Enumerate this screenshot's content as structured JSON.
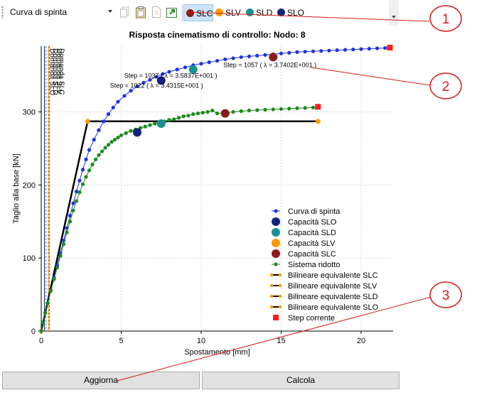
{
  "toolbar": {
    "view_select": "Curva di spinta",
    "icons": [
      "copy-icon",
      "clipboard-icon",
      "document-icon",
      "export-icon"
    ],
    "legend": [
      {
        "label": "SLC",
        "color": "#8b1a1a"
      },
      {
        "label": "SLV",
        "color": "#ff9900"
      },
      {
        "label": "SLD",
        "color": "#1a9090"
      },
      {
        "label": "SLO",
        "color": "#13237a"
      }
    ]
  },
  "chart_data": {
    "type": "line",
    "title": "Risposta cinematismo di controllo: Nodo: 8",
    "xlabel": "Spostamento [mm]",
    "ylabel": "Taglio alla base [kN]",
    "xlim": [
      0,
      22
    ],
    "ylim": [
      0,
      390
    ],
    "xticks": [
      "0",
      "5",
      "10",
      "15",
      "20"
    ],
    "yticks": [
      "0",
      "100",
      "200",
      "300"
    ],
    "vertical_lines": [
      {
        "label": "Domanda SLO",
        "x": 0.2,
        "color": "#13237a"
      },
      {
        "label": "Domanda SLD",
        "x": 0.3,
        "color": "#1a9090"
      },
      {
        "label": "Domanda SLV",
        "x": 0.45,
        "color": "#ff9900"
      },
      {
        "label": "Domanda SLC",
        "x": 0.5,
        "color": "#8b1a1a"
      }
    ],
    "annotations": [
      {
        "text": "Step = 1057 ( λ = 3.7402E+001 )",
        "x": 14.5,
        "y": 375
      },
      {
        "text": "Step = 1037 ( λ = 3.5837E+001 )",
        "x": 7.5,
        "y": 343
      },
      {
        "text": "Step = 1022 ( λ = 3.4315E+001 )",
        "x": 7.5,
        "y": 343
      }
    ],
    "series": [
      {
        "name": "Curva di spinta",
        "color": "#1f32e6",
        "marker": "dot",
        "x": [
          0,
          0.1,
          0.25,
          0.4,
          0.6,
          0.8,
          1.0,
          1.2,
          1.4,
          1.6,
          1.8,
          2.0,
          2.2,
          2.4,
          2.6,
          2.8,
          3.0,
          3.3,
          3.6,
          3.9,
          4.2,
          4.5,
          4.8,
          5.2,
          5.6,
          6.0,
          6.4,
          6.8,
          7.2,
          7.6,
          8.0,
          8.5,
          9.0,
          9.5,
          10.0,
          10.5,
          11.0,
          11.5,
          12.0,
          12.5,
          13.0,
          13.5,
          14.0,
          14.5,
          15.0,
          15.5,
          16.0,
          16.5,
          17.0,
          17.5,
          18.0,
          18.5,
          19.0,
          19.5,
          20.0,
          20.5,
          21.0,
          21.5,
          21.8
        ],
        "y": [
          0,
          12,
          25,
          38,
          56,
          73,
          90,
          107,
          124,
          141,
          158,
          175,
          191,
          206,
          221,
          235,
          248,
          262,
          275,
          287,
          297,
          306,
          314,
          322,
          329,
          335,
          340,
          344,
          348,
          352,
          355,
          358,
          361,
          364,
          366,
          368,
          370,
          372,
          373.5,
          375,
          376,
          377,
          378,
          379,
          380,
          381,
          382,
          382.5,
          383,
          383.5,
          384,
          384.5,
          385,
          385.5,
          386,
          386.5,
          387,
          387.5,
          388
        ]
      },
      {
        "name": "Sistema ridotto",
        "color": "#1a8a1a",
        "marker": "dot",
        "x": [
          0,
          0.1,
          0.25,
          0.4,
          0.6,
          0.8,
          1.0,
          1.2,
          1.4,
          1.6,
          1.8,
          2.0,
          2.2,
          2.4,
          2.6,
          2.8,
          3.0,
          3.2,
          3.4,
          3.6,
          3.8,
          4.0,
          4.2,
          4.4,
          4.6,
          4.8,
          5.0,
          5.3,
          5.6,
          5.9,
          6.2,
          6.5,
          6.8,
          7.1,
          7.4,
          7.7,
          8.0,
          8.3,
          8.6,
          8.9,
          9.2,
          9.5,
          9.8,
          10.1,
          10.4,
          10.7,
          11.0,
          11.5,
          12.0,
          12.5,
          13.0,
          13.5,
          14.0,
          14.5,
          15.0,
          15.5,
          16.0,
          16.5,
          17.0,
          17.3
        ],
        "y": [
          0,
          12,
          25,
          38,
          55,
          71,
          87,
          103,
          119,
          135,
          150,
          165,
          178,
          190,
          201,
          211,
          220,
          228,
          235,
          241,
          246,
          251,
          255,
          259,
          262,
          265,
          268,
          271,
          274,
          276,
          278,
          280,
          282,
          284,
          285,
          287,
          289,
          290,
          292,
          294,
          295,
          297,
          298,
          299,
          300,
          302,
          298,
          299,
          300,
          301,
          302,
          302.5,
          303,
          303.5,
          304,
          304.5,
          305,
          305.5,
          306,
          306.5
        ]
      }
    ],
    "bilinear": [
      {
        "name": "Bilineare equivalente SLC",
        "x": [
          0,
          2.9,
          17.3
        ],
        "y": [
          0,
          287,
          287
        ],
        "color": "#ff9900"
      },
      {
        "name": "Bilineare equivalente SLV",
        "x": [
          0,
          2.9,
          17.3
        ],
        "y": [
          0,
          287,
          287
        ],
        "color": "#ff9900"
      },
      {
        "name": "Bilineare equivalente SLD",
        "x": [
          0,
          2.9,
          17.3
        ],
        "y": [
          0,
          287,
          287
        ],
        "color": "#ff9900"
      },
      {
        "name": "Bilineare equivalente SLO",
        "x": [
          0,
          2.9,
          17.3
        ],
        "y": [
          0,
          287,
          287
        ],
        "color": "#ff9900"
      }
    ],
    "capacity_points": [
      {
        "name": "Capacità SLO",
        "color": "#13237a",
        "points": [
          {
            "x": 7.5,
            "y": 343
          },
          {
            "x": 6.0,
            "y": 272
          }
        ]
      },
      {
        "name": "Capacità SLD",
        "color": "#1a9090",
        "points": [
          {
            "x": 9.5,
            "y": 358
          },
          {
            "x": 7.5,
            "y": 284
          }
        ]
      },
      {
        "name": "Capacità SLV",
        "color": "#ff9900",
        "points": [
          {
            "x": 2.9,
            "y": 287
          },
          {
            "x": 17.3,
            "y": 287
          }
        ]
      },
      {
        "name": "Capacità SLC",
        "color": "#8b1a1a",
        "points": [
          {
            "x": 14.5,
            "y": 375
          },
          {
            "x": 11.5,
            "y": 298
          }
        ]
      }
    ],
    "step_corrente": {
      "name": "Step corrente",
      "color": "#ff1a1a",
      "points": [
        {
          "x": 21.8,
          "y": 388
        },
        {
          "x": 17.3,
          "y": 307
        }
      ]
    },
    "legend_entries": [
      {
        "label": "Curva di spinta",
        "kind": "line-dot",
        "color": "#1f32e6"
      },
      {
        "label": "Capacità SLO",
        "kind": "big-dot",
        "color": "#13237a"
      },
      {
        "label": "Capacità SLD",
        "kind": "big-dot",
        "color": "#1a9090"
      },
      {
        "label": "Capacità SLV",
        "kind": "big-dot",
        "color": "#ff9900"
      },
      {
        "label": "Capacità SLC",
        "kind": "big-dot",
        "color": "#8b1a1a"
      },
      {
        "label": "Sistema ridotto",
        "kind": "line-dot",
        "color": "#1a8a1a"
      },
      {
        "label": "Bilineare equivalente SLC",
        "kind": "bilinear",
        "color": "#ff9900"
      },
      {
        "label": "Bilineare equivalente SLV",
        "kind": "bilinear",
        "color": "#ff9900"
      },
      {
        "label": "Bilineare equivalente SLD",
        "kind": "bilinear",
        "color": "#ff9900"
      },
      {
        "label": "Bilineare equivalente SLO",
        "kind": "bilinear",
        "color": "#ff9900"
      },
      {
        "label": "Step corrente",
        "kind": "square",
        "color": "#ff1a1a"
      }
    ],
    "legend_position": "bottom-right",
    "grid": true
  },
  "buttons": {
    "update": "Aggiorna",
    "compute": "Calcola"
  },
  "callouts": [
    {
      "number": "1",
      "color": "#d81b1b"
    },
    {
      "number": "2",
      "color": "#d81b1b"
    },
    {
      "number": "3",
      "color": "#d81b1b"
    }
  ]
}
